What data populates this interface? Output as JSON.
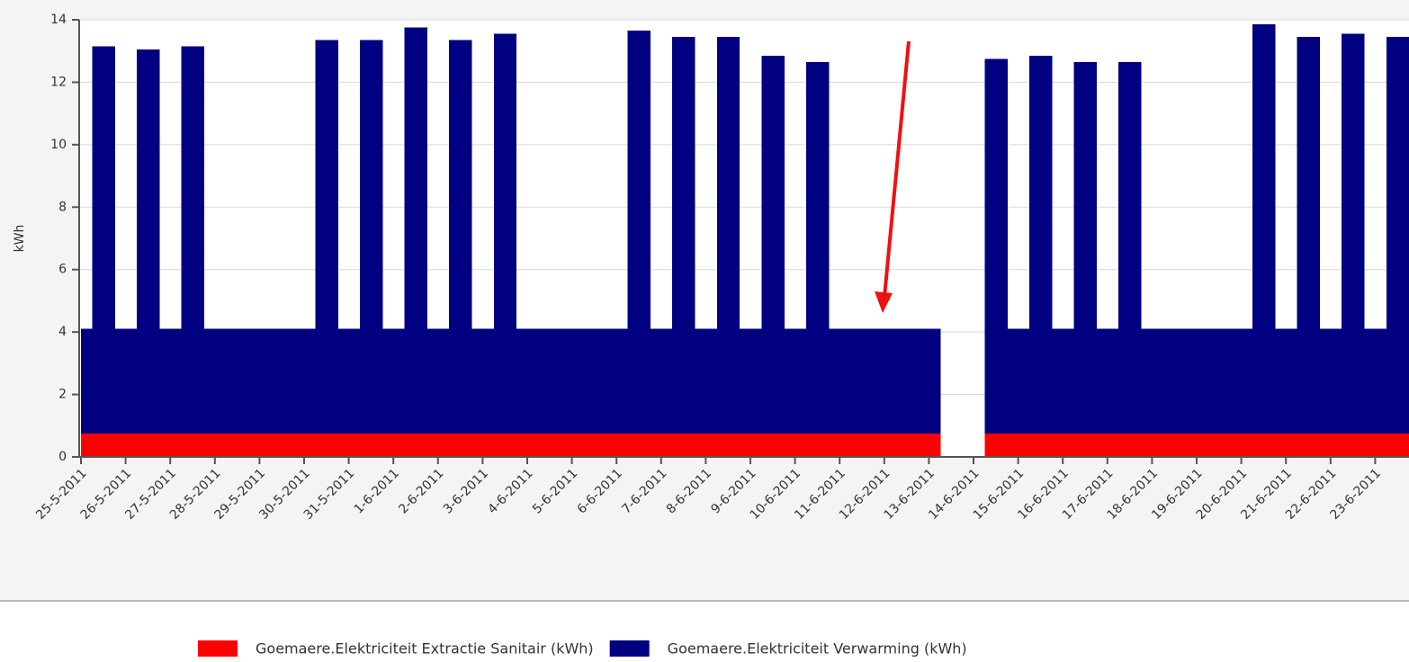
{
  "chart_data": {
    "type": "stacked_bar",
    "y_label": "kWh",
    "categories": [
      "25-5-2011",
      null,
      null,
      null,
      "26-5-2011",
      null,
      null,
      null,
      "27-5-2011",
      null,
      null,
      null,
      "28-5-2011",
      null,
      null,
      null,
      "29-5-2011",
      null,
      null,
      null,
      "30-5-2011",
      null,
      null,
      null,
      "31-5-2011",
      null,
      null,
      null,
      "1-6-2011",
      null,
      null,
      null,
      "2-6-2011",
      null,
      null,
      null,
      "3-6-2011",
      null,
      null,
      null,
      "4-6-2011",
      null,
      null,
      null,
      "5-6-2011",
      null,
      null,
      null,
      "6-6-2011",
      null,
      null,
      null,
      "7-6-2011",
      null,
      null,
      null,
      "8-6-2011",
      null,
      null,
      null,
      "9-6-2011",
      null,
      null,
      null,
      "10-6-2011",
      null,
      null,
      null,
      "11-6-2011",
      null,
      null,
      null,
      "12-6-2011",
      null,
      null,
      null,
      "13-6-2011",
      null,
      null,
      null,
      "14-6-2011",
      null,
      null,
      null,
      "15-6-2011",
      null,
      null,
      null,
      "16-6-2011",
      null,
      null,
      null,
      "17-6-2011",
      null,
      null,
      null,
      "18-6-2011",
      null,
      null,
      null,
      "19-6-2011",
      null,
      null,
      null,
      "20-6-2011",
      null,
      null,
      null,
      "21-6-2011",
      null,
      null,
      null,
      "22-6-2011",
      null,
      null,
      null,
      "23-6-2011",
      null,
      null,
      null
    ],
    "series": [
      {
        "name": "Goemaere.Elektriciteit Extractie Sanitair (kWh)",
        "color": "#ff0000",
        "values": [
          0.75,
          0.75,
          0.75,
          0.75,
          0.75,
          0.75,
          0.75,
          0.75,
          0.75,
          0.75,
          0.75,
          0.75,
          0.75,
          0.75,
          0.75,
          0.75,
          0.75,
          0.75,
          0.75,
          0.75,
          0.75,
          0.75,
          0.75,
          0.75,
          0.75,
          0.75,
          0.75,
          0.75,
          0.75,
          0.75,
          0.75,
          0.75,
          0.75,
          0.75,
          0.75,
          0.75,
          0.75,
          0.75,
          0.75,
          0.75,
          0.75,
          0.75,
          0.75,
          0.75,
          0.75,
          0.75,
          0.75,
          0.75,
          0.75,
          0.75,
          0.75,
          0.75,
          0.75,
          0.75,
          0.75,
          0.75,
          0.75,
          0.75,
          0.75,
          0.75,
          0.75,
          0.75,
          0.75,
          0.75,
          0.75,
          0.75,
          0.75,
          0.75,
          0.75,
          0.75,
          0.75,
          0.75,
          0.75,
          0.75,
          0.75,
          0.75,
          0.75,
          0,
          0,
          0,
          0,
          0.75,
          0.75,
          0.75,
          0.75,
          0.75,
          0.75,
          0.75,
          0.75,
          0.75,
          0.75,
          0.75,
          0.75,
          0.75,
          0.75,
          0.75,
          0.75,
          0.75,
          0.75,
          0.75,
          0.75,
          0.75,
          0.75,
          0.75,
          0.75,
          0.75,
          0.75,
          0.75,
          0.75,
          0.75,
          0.75,
          0.75,
          0.75,
          0.75,
          0.75,
          0.75,
          0.75,
          0.75,
          0.75,
          0.75
        ]
      },
      {
        "name": "Goemaere.Elektriciteit Verwarming (kWh)",
        "color": "#000080",
        "values": [
          3.35,
          12.4,
          12.4,
          3.35,
          3.35,
          12.3,
          12.3,
          3.35,
          3.35,
          12.4,
          12.4,
          3.35,
          3.35,
          3.35,
          3.35,
          3.35,
          3.35,
          3.35,
          3.35,
          3.35,
          3.35,
          12.6,
          12.6,
          3.35,
          3.35,
          12.6,
          12.6,
          3.35,
          3.35,
          13.0,
          13.0,
          3.35,
          3.35,
          12.6,
          12.6,
          3.35,
          3.35,
          12.8,
          12.8,
          3.35,
          3.35,
          3.35,
          3.35,
          3.35,
          3.35,
          3.35,
          3.35,
          3.35,
          3.35,
          12.9,
          12.9,
          3.35,
          3.35,
          12.7,
          12.7,
          3.35,
          3.35,
          12.7,
          12.7,
          3.35,
          3.35,
          12.1,
          12.1,
          3.35,
          3.35,
          11.9,
          11.9,
          3.35,
          3.35,
          3.35,
          3.35,
          3.35,
          3.35,
          3.35,
          3.35,
          3.35,
          3.35,
          0,
          0,
          0,
          0,
          12.0,
          12.0,
          3.35,
          3.35,
          12.1,
          12.1,
          3.35,
          3.35,
          11.9,
          11.9,
          3.35,
          3.35,
          11.9,
          11.9,
          3.35,
          3.35,
          3.35,
          3.35,
          3.35,
          3.35,
          3.35,
          3.35,
          3.35,
          3.35,
          13.1,
          13.1,
          3.35,
          3.35,
          12.7,
          12.7,
          3.35,
          3.35,
          12.8,
          12.8,
          3.35,
          3.35,
          12.7,
          12.7,
          3.35
        ]
      }
    ],
    "ylim": [
      0,
      14
    ],
    "yticks": [
      0,
      2,
      4,
      6,
      8,
      10,
      12,
      14
    ],
    "grid": true,
    "legend": "bottom"
  }
}
